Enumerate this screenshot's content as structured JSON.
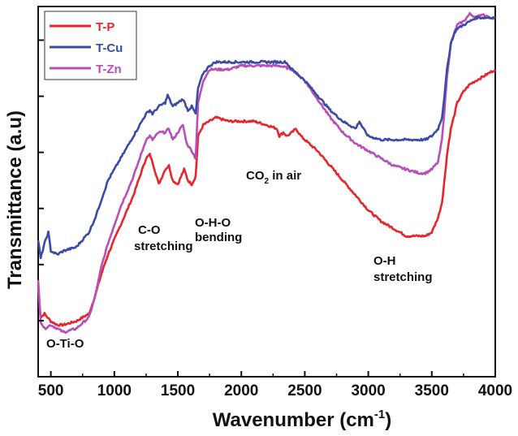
{
  "chart_data": {
    "type": "line",
    "title": "",
    "xlabel": "Wavenumber (cm",
    "xlabel_sup": "-1",
    "xlabel_close": ")",
    "ylabel": "Transmittance (a.u)",
    "xlim": [
      400,
      4000
    ],
    "ylim": [
      0,
      1
    ],
    "x_ticks": [
      500,
      1000,
      1500,
      2000,
      2500,
      3000,
      3500,
      4000
    ],
    "x_tick_labels": [
      "500",
      "1000",
      "1500",
      "2000",
      "2500",
      "3000",
      "3500",
      "4000"
    ],
    "y_tick_labels_shown": false,
    "grid": false,
    "legend_position": "top-left",
    "series": [
      {
        "name": "T-P",
        "color": "#e8242c",
        "x": [
          400,
          420,
          450,
          500,
          550,
          600,
          700,
          800,
          850,
          900,
          950,
          1000,
          1050,
          1100,
          1150,
          1200,
          1250,
          1280,
          1300,
          1350,
          1400,
          1430,
          1460,
          1500,
          1550,
          1580,
          1610,
          1640,
          1660,
          1700,
          1750,
          1800,
          1900,
          2000,
          2100,
          2200,
          2280,
          2300,
          2330,
          2360,
          2400,
          2430,
          2470,
          2500,
          2600,
          2700,
          2800,
          2900,
          3000,
          3100,
          3200,
          3300,
          3400,
          3450,
          3500,
          3550,
          3580,
          3600,
          3620,
          3650,
          3680,
          3700,
          3750,
          3800,
          3850,
          3900,
          3950,
          4000
        ],
        "values": [
          0.24,
          0.16,
          0.17,
          0.15,
          0.14,
          0.14,
          0.15,
          0.17,
          0.22,
          0.28,
          0.33,
          0.37,
          0.41,
          0.45,
          0.49,
          0.54,
          0.59,
          0.6,
          0.58,
          0.52,
          0.56,
          0.57,
          0.53,
          0.52,
          0.56,
          0.53,
          0.52,
          0.54,
          0.65,
          0.68,
          0.69,
          0.7,
          0.69,
          0.69,
          0.69,
          0.68,
          0.67,
          0.65,
          0.66,
          0.65,
          0.66,
          0.67,
          0.65,
          0.64,
          0.61,
          0.57,
          0.53,
          0.49,
          0.45,
          0.42,
          0.4,
          0.38,
          0.38,
          0.38,
          0.39,
          0.43,
          0.47,
          0.53,
          0.6,
          0.67,
          0.71,
          0.74,
          0.77,
          0.79,
          0.8,
          0.81,
          0.82,
          0.83
        ]
      },
      {
        "name": "T-Cu",
        "color": "#3a4aa8",
        "x": [
          400,
          420,
          450,
          480,
          500,
          550,
          600,
          700,
          800,
          850,
          900,
          950,
          1000,
          1050,
          1100,
          1150,
          1200,
          1250,
          1280,
          1300,
          1350,
          1400,
          1420,
          1460,
          1500,
          1540,
          1580,
          1610,
          1640,
          1660,
          1700,
          1750,
          1800,
          1900,
          2000,
          2100,
          2200,
          2300,
          2350,
          2400,
          2500,
          2600,
          2700,
          2800,
          2900,
          2930,
          2960,
          3000,
          3100,
          3200,
          3300,
          3400,
          3450,
          3500,
          3550,
          3580,
          3600,
          3620,
          3650,
          3680,
          3700,
          3750,
          3800,
          3850,
          3900,
          3950,
          4000
        ],
        "values": [
          0.37,
          0.32,
          0.36,
          0.39,
          0.34,
          0.33,
          0.34,
          0.35,
          0.39,
          0.43,
          0.48,
          0.53,
          0.56,
          0.59,
          0.62,
          0.65,
          0.68,
          0.71,
          0.72,
          0.71,
          0.73,
          0.74,
          0.76,
          0.73,
          0.74,
          0.75,
          0.72,
          0.73,
          0.71,
          0.78,
          0.82,
          0.84,
          0.85,
          0.85,
          0.85,
          0.85,
          0.85,
          0.85,
          0.85,
          0.83,
          0.8,
          0.76,
          0.72,
          0.69,
          0.67,
          0.69,
          0.67,
          0.65,
          0.64,
          0.64,
          0.64,
          0.64,
          0.64,
          0.65,
          0.67,
          0.7,
          0.76,
          0.83,
          0.9,
          0.93,
          0.94,
          0.95,
          0.96,
          0.97,
          0.97,
          0.97,
          0.97
        ]
      },
      {
        "name": "T-Zn",
        "color": "#b84fb8",
        "x": [
          400,
          420,
          450,
          500,
          550,
          600,
          700,
          800,
          850,
          900,
          950,
          1000,
          1050,
          1100,
          1150,
          1200,
          1250,
          1280,
          1300,
          1350,
          1400,
          1430,
          1460,
          1500,
          1540,
          1570,
          1610,
          1640,
          1660,
          1700,
          1750,
          1800,
          1900,
          2000,
          2100,
          2200,
          2300,
          2400,
          2500,
          2600,
          2700,
          2800,
          2900,
          3000,
          3100,
          3200,
          3300,
          3400,
          3450,
          3500,
          3550,
          3580,
          3600,
          3620,
          3650,
          3680,
          3700,
          3750,
          3800,
          3850,
          3900,
          3950,
          4000
        ],
        "values": [
          0.26,
          0.15,
          0.13,
          0.14,
          0.13,
          0.12,
          0.13,
          0.16,
          0.22,
          0.3,
          0.36,
          0.41,
          0.46,
          0.5,
          0.54,
          0.59,
          0.64,
          0.65,
          0.64,
          0.66,
          0.66,
          0.67,
          0.64,
          0.66,
          0.68,
          0.63,
          0.61,
          0.59,
          0.74,
          0.8,
          0.83,
          0.83,
          0.83,
          0.84,
          0.84,
          0.84,
          0.84,
          0.83,
          0.8,
          0.75,
          0.7,
          0.66,
          0.63,
          0.61,
          0.59,
          0.57,
          0.56,
          0.55,
          0.55,
          0.56,
          0.58,
          0.64,
          0.72,
          0.81,
          0.9,
          0.93,
          0.95,
          0.96,
          0.98,
          0.97,
          0.98,
          0.97,
          0.97
        ]
      }
    ],
    "annotations": [
      {
        "id": "oTiO",
        "text": "O-Ti-O"
      },
      {
        "id": "co",
        "lines": [
          "C-O",
          "stretching"
        ]
      },
      {
        "id": "oho",
        "lines": [
          "O-H-O",
          "bending"
        ]
      },
      {
        "id": "co2",
        "text": "CO",
        "sub": "2",
        "tail": " in air"
      },
      {
        "id": "oh",
        "lines": [
          "O-H",
          "stretching"
        ]
      }
    ]
  }
}
